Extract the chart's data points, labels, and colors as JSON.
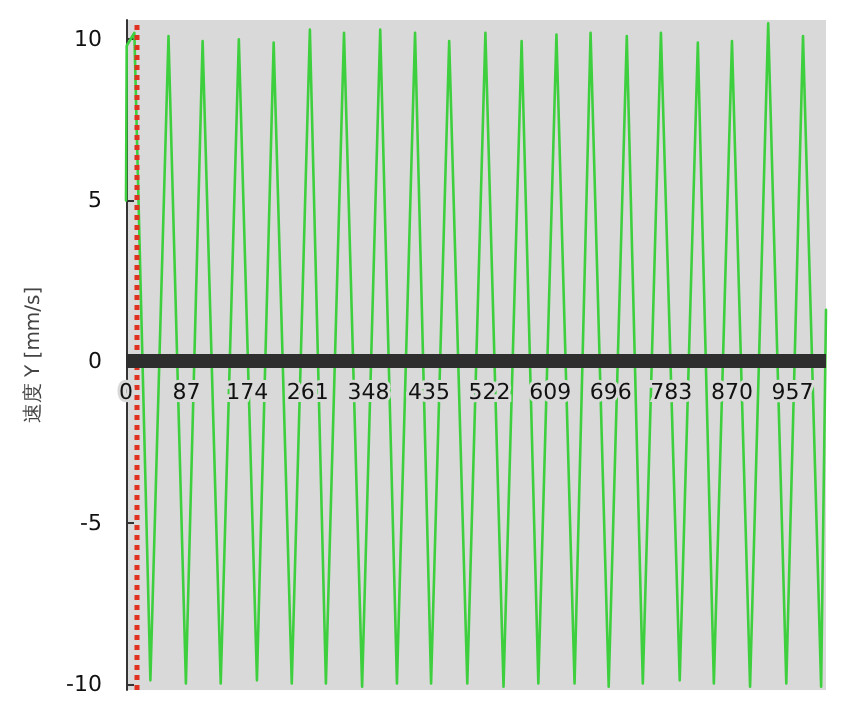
{
  "chart_data": {
    "type": "line",
    "ylabel": "速度 Y [mm/s]",
    "xlim": [
      0,
      1005
    ],
    "xticks": [
      0,
      87,
      174,
      261,
      348,
      435,
      522,
      609,
      696,
      783,
      870,
      957
    ],
    "ylim": [
      -10.2,
      10.6
    ],
    "yticks": [
      -10,
      -5,
      0,
      5,
      10
    ],
    "x": [
      0,
      1,
      12,
      35,
      61,
      86,
      110,
      136,
      162,
      188,
      212,
      238,
      264,
      287,
      313,
      339,
      365,
      389,
      415,
      438,
      464,
      490,
      516,
      542,
      568,
      592,
      618,
      644,
      667,
      693,
      719,
      742,
      768,
      795,
      821,
      844,
      870,
      896,
      922,
      948,
      972,
      998,
      1005
    ],
    "series": [
      {
        "color": "#3ecf3e",
        "values": [
          5,
          9.8,
          10.2,
          -9.9,
          10.1,
          -10.0,
          9.95,
          -10.0,
          10.0,
          -9.9,
          9.9,
          -10.0,
          10.3,
          -10.0,
          10.2,
          -10.1,
          10.3,
          -10.0,
          10.2,
          -10.0,
          9.95,
          -10.0,
          10.2,
          -10.1,
          9.95,
          -10.0,
          10.15,
          -10.0,
          10.2,
          -10.1,
          10.1,
          -10.0,
          10.2,
          -9.9,
          9.9,
          -10.0,
          9.95,
          -10.1,
          10.5,
          -10.0,
          10.1,
          -10.1,
          1.6
        ]
      }
    ],
    "ref_lines": [
      {
        "axis": "x",
        "value": 15,
        "color": "#e03020",
        "line_style": "dotted"
      }
    ],
    "marker": "none"
  }
}
